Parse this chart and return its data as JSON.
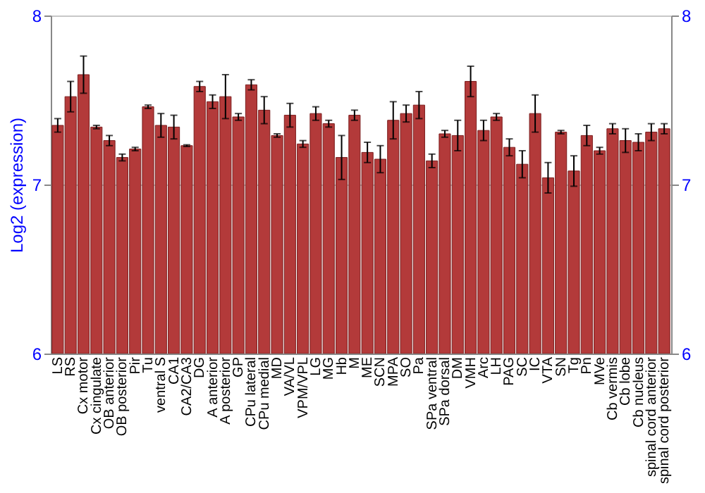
{
  "chart_data": {
    "type": "bar",
    "ylabel": "Log2 (expression)",
    "categories": [
      "LS",
      "RS",
      "Cx motor",
      "Cx cingulate",
      "OB anterior",
      "OB posterior",
      "Pir",
      "Tu",
      "ventral S",
      "CA1",
      "CA2/CA3",
      "DG",
      "A anterior",
      "A posterior",
      "GP",
      "CPu lateral",
      "CPu medial",
      "MD",
      "VA/VL",
      "VPM/VPL",
      "LG",
      "MG",
      "Hb",
      "M",
      "ME",
      "SCN",
      "MPA",
      "SO",
      "Pa",
      "SPa ventral",
      "SPa dorsal",
      "DM",
      "VMH",
      "Arc",
      "LH",
      "PAG",
      "SC",
      "IC",
      "VTA",
      "SN",
      "Tg",
      "Pn",
      "MVe",
      "Cb vermis",
      "Cb lobe",
      "Cb nucleus",
      "spinal cord anterior",
      "spinal cord posterior"
    ],
    "values": [
      7.35,
      7.52,
      7.65,
      7.34,
      7.26,
      7.16,
      7.21,
      7.46,
      7.35,
      7.34,
      7.23,
      7.58,
      7.49,
      7.52,
      7.4,
      7.59,
      7.44,
      7.29,
      7.41,
      7.24,
      7.42,
      7.36,
      7.16,
      7.41,
      7.19,
      7.15,
      7.38,
      7.42,
      7.47,
      7.14,
      7.3,
      7.29,
      7.61,
      7.32,
      7.4,
      7.22,
      7.12,
      7.42,
      7.04,
      7.31,
      7.08,
      7.29,
      7.2,
      7.33,
      7.26,
      7.25,
      7.31,
      7.33
    ],
    "errors": [
      0.04,
      0.09,
      0.11,
      0.01,
      0.03,
      0.02,
      0.01,
      0.01,
      0.07,
      0.07,
      0.005,
      0.03,
      0.04,
      0.13,
      0.02,
      0.03,
      0.08,
      0.01,
      0.07,
      0.02,
      0.04,
      0.02,
      0.13,
      0.03,
      0.06,
      0.08,
      0.11,
      0.05,
      0.08,
      0.04,
      0.02,
      0.09,
      0.09,
      0.06,
      0.02,
      0.05,
      0.08,
      0.11,
      0.09,
      0.01,
      0.09,
      0.06,
      0.02,
      0.03,
      0.07,
      0.05,
      0.05,
      0.03
    ],
    "color": "#b33a3a",
    "ylim": [
      6,
      8
    ],
    "yticks": [
      6,
      7,
      8
    ],
    "y2lim": [
      6,
      8
    ],
    "y2ticks": [
      6,
      7,
      8
    ],
    "grid": "y"
  }
}
